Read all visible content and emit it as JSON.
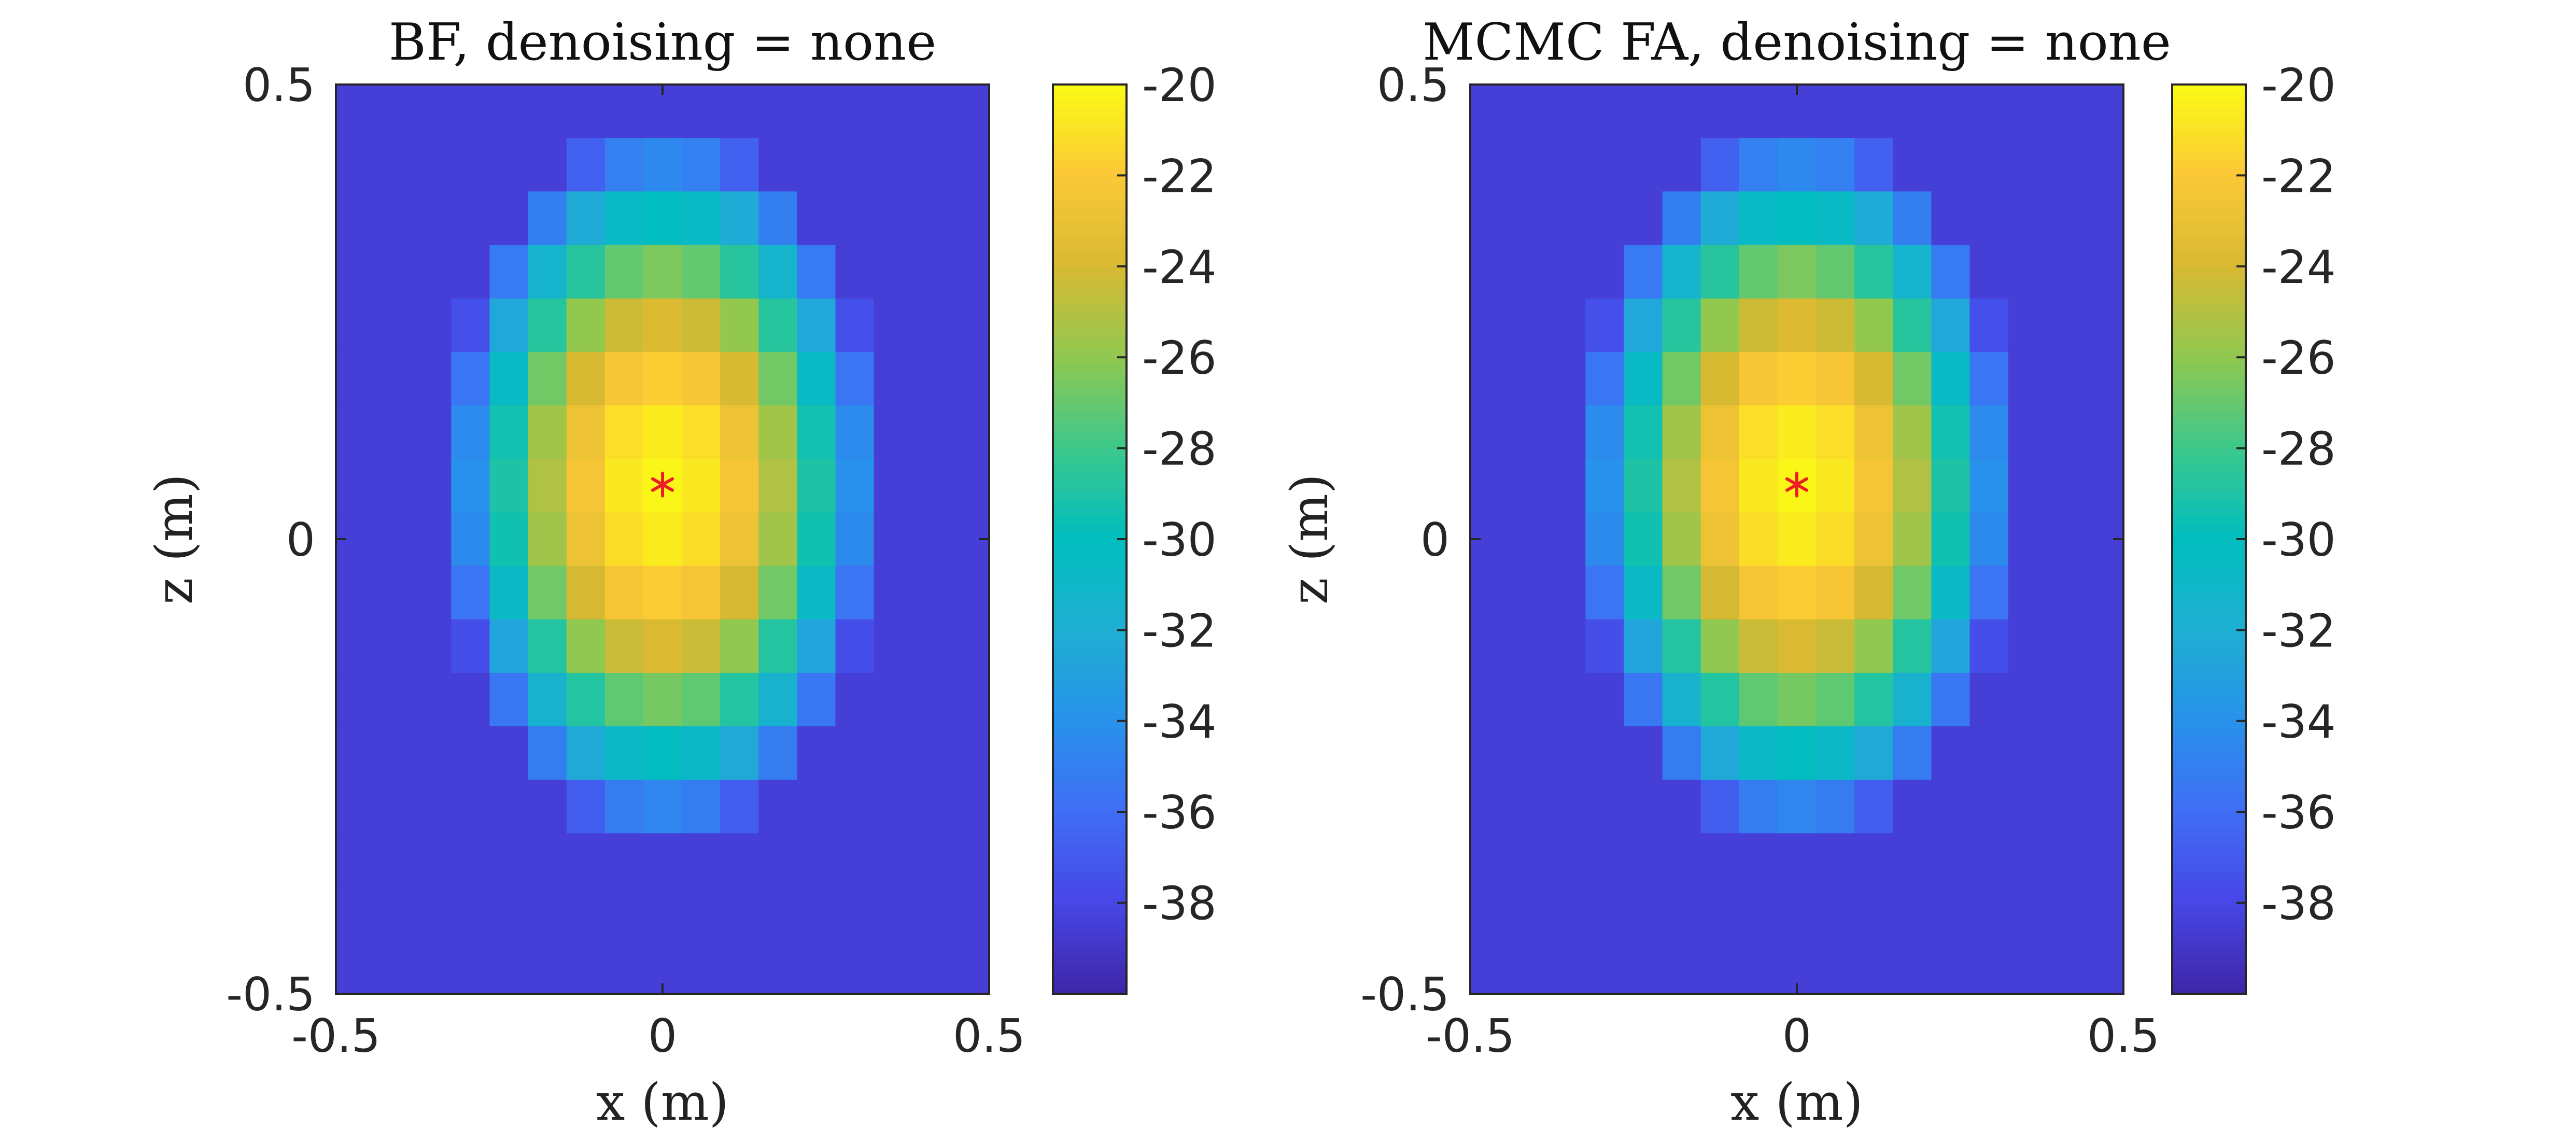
{
  "colors": {
    "marker": "#ee1c25",
    "axis": "#262626",
    "colormap": "parula"
  },
  "chart_data": [
    {
      "type": "heatmap",
      "title": "BF, denoising = none",
      "xlabel": "x (m)",
      "ylabel": "z (m)",
      "xlim": [
        -0.5,
        0.5
      ],
      "ylim": [
        -0.5,
        0.5
      ],
      "x_ticks": [
        {
          "value": -0.5,
          "label": "-0.5"
        },
        {
          "value": 0,
          "label": "0"
        },
        {
          "value": 0.5,
          "label": "0.5"
        }
      ],
      "y_ticks": [
        {
          "value": 0.5,
          "label": "0.5"
        },
        {
          "value": 0,
          "label": "0"
        },
        {
          "value": -0.5,
          "label": "-0.5"
        }
      ],
      "colorbar": {
        "range": [
          -40,
          -20
        ],
        "ticks": [
          {
            "value": -20,
            "label": "-20"
          },
          {
            "value": -22,
            "label": "-22"
          },
          {
            "value": -24,
            "label": "-24"
          },
          {
            "value": -26,
            "label": "-26"
          },
          {
            "value": -28,
            "label": "-28"
          },
          {
            "value": -30,
            "label": "-30"
          },
          {
            "value": -32,
            "label": "-32"
          },
          {
            "value": -34,
            "label": "-34"
          },
          {
            "value": -36,
            "label": "-36"
          },
          {
            "value": -38,
            "label": "-38"
          }
        ]
      },
      "grid": {
        "cols": 17,
        "rows": 17,
        "peak_db": -20.2,
        "peak_x": 0.0,
        "peak_z": 0.06,
        "floor_db": -38.5,
        "sigma_x": 0.17,
        "sigma_z": 0.2,
        "comment": "cell value = max(floor, peak - 8.686*((dx/sx)^2+(dz/sz)^2)/2 ... ) approximated gaussian"
      },
      "source_marker": {
        "x": 0.0,
        "z": 0.06,
        "symbol": "*"
      }
    },
    {
      "type": "heatmap",
      "title": "MCMC FA, denoising = none",
      "xlabel": "x (m)",
      "ylabel": "z (m)",
      "xlim": [
        -0.5,
        0.5
      ],
      "ylim": [
        -0.5,
        0.5
      ],
      "x_ticks": [
        {
          "value": -0.5,
          "label": "-0.5"
        },
        {
          "value": 0,
          "label": "0"
        },
        {
          "value": 0.5,
          "label": "0.5"
        }
      ],
      "y_ticks": [
        {
          "value": 0.5,
          "label": "0.5"
        },
        {
          "value": 0,
          "label": "0"
        },
        {
          "value": -0.5,
          "label": "-0.5"
        }
      ],
      "colorbar": {
        "range": [
          -40,
          -20
        ],
        "ticks": [
          {
            "value": -20,
            "label": "-20"
          },
          {
            "value": -22,
            "label": "-22"
          },
          {
            "value": -24,
            "label": "-24"
          },
          {
            "value": -26,
            "label": "-26"
          },
          {
            "value": -28,
            "label": "-28"
          },
          {
            "value": -30,
            "label": "-30"
          },
          {
            "value": -32,
            "label": "-32"
          },
          {
            "value": -34,
            "label": "-34"
          },
          {
            "value": -36,
            "label": "-36"
          },
          {
            "value": -38,
            "label": "-38"
          }
        ]
      },
      "grid": {
        "cols": 17,
        "rows": 17,
        "peak_db": -20.2,
        "peak_x": 0.0,
        "peak_z": 0.06,
        "floor_db": -38.5,
        "sigma_x": 0.17,
        "sigma_z": 0.2
      },
      "source_marker": {
        "x": 0.0,
        "z": 0.06,
        "symbol": "*"
      }
    }
  ]
}
